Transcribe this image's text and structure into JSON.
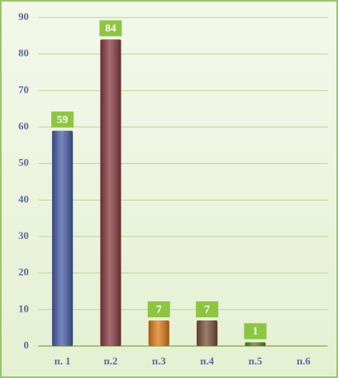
{
  "chart_data": {
    "type": "bar",
    "categories": [
      "п. 1",
      "п.2",
      "п.3",
      "п.4",
      "п.5",
      "п.6"
    ],
    "values": [
      59,
      84,
      7,
      7,
      1,
      null
    ],
    "colors": [
      "#4a5ea8",
      "#8a3b40",
      "#e07a1c",
      "#7a5238",
      "#5f7f25",
      "#888888"
    ],
    "ylim": [
      0,
      90
    ],
    "yticks": [
      0,
      10,
      20,
      30,
      40,
      50,
      60,
      70,
      80,
      90
    ],
    "grid": true
  }
}
